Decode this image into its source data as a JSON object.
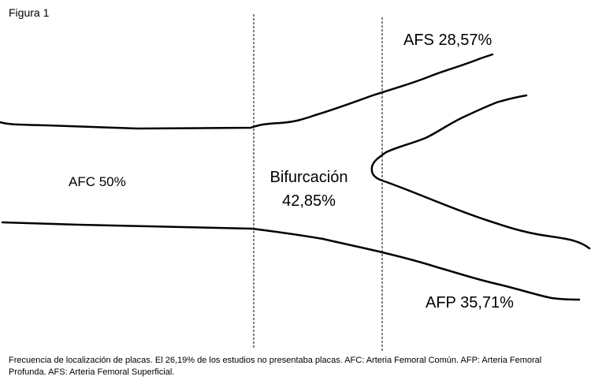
{
  "figure_label": "Figura 1",
  "labels": {
    "afs": "AFS 28,57%",
    "afc": "AFC 50%",
    "bifurcation_name": "Bifurcación",
    "bifurcation_value": "42,85%",
    "afp": "AFP 35,71%"
  },
  "caption": {
    "lines": [
      "Frecuencia de localización de placas. El 26,19% de los estudios no presentaba placas. AFC: Arteria Femoral Común. AFP: Arteria Femoral",
      "Profunda. AFS: Arteria Femoral Superficial."
    ]
  }
}
